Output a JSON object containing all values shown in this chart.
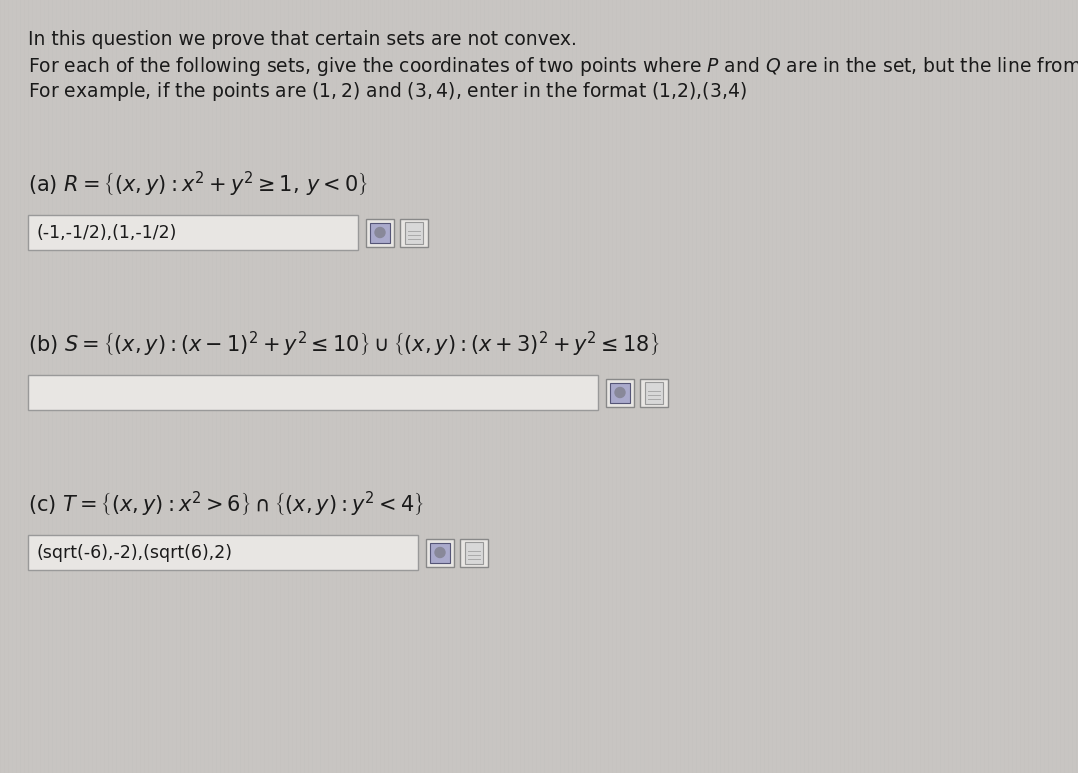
{
  "bg_color": "#c8c5c2",
  "text_color": "#1a1a1a",
  "intro_lines": [
    "In this question we prove that certain sets are not convex.",
    "For each of the following sets, give the coordinates of two points where $P$ and $Q$ are in the set, but the line from $P$ to $Q$ goes",
    "For example, if the points are $(1, 2)$ and $(3, 4)$, enter in the format (1,2),(3,4)"
  ],
  "part_a_answer": "(-1,-1/2),(1,-1/2)",
  "part_b_answer": "",
  "part_c_answer": "(sqrt(-6),-2),(sqrt(6),2)",
  "input_box_color": "#e8e6e3",
  "input_box_border": "#999999",
  "font_size_intro": 13.5,
  "font_size_parts": 15,
  "font_size_answer": 12.5
}
